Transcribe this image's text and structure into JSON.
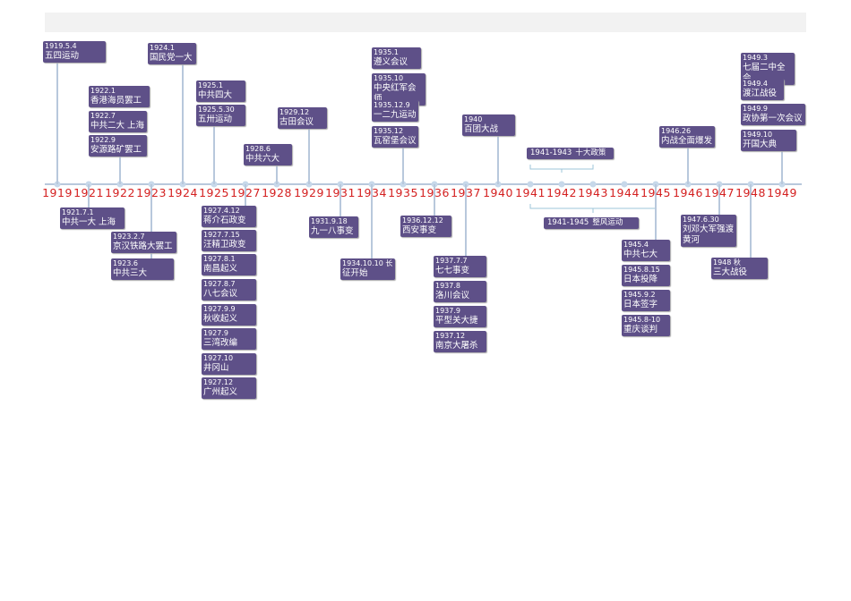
{
  "timeline": {
    "years": [
      "1919",
      "1921",
      "1922",
      "1923",
      "1924",
      "1925",
      "1927",
      "1928",
      "1929",
      "1931",
      "1934",
      "1935",
      "1936",
      "1937",
      "1940",
      "1941",
      "1942",
      "1943",
      "1944",
      "1945",
      "1946",
      "1947",
      "1948",
      "1949"
    ],
    "events": [
      {
        "date": "1919.5.4",
        "label": "五四运动"
      },
      {
        "date": "1922.1",
        "label": "香港海员罢工"
      },
      {
        "date": "1922.7",
        "label": "中共二大 上海"
      },
      {
        "date": "1922.9",
        "label": "安源路矿罢工"
      },
      {
        "date": "1924.1",
        "label": "国民党一大"
      },
      {
        "date": "1925.1",
        "label": "中共四大"
      },
      {
        "date": "1925.5.30",
        "label": "五卅运动"
      },
      {
        "date": "1928.6",
        "label": "中共六大"
      },
      {
        "date": "1929.12",
        "label": "古田会议"
      },
      {
        "date": "1935.1",
        "label": "遵义会议"
      },
      {
        "date": "1935.10",
        "label": "中央红军会师"
      },
      {
        "date": "1935.12.9",
        "label": "一二九运动"
      },
      {
        "date": "1935.12",
        "label": "瓦窑堡会议"
      },
      {
        "date": "1940",
        "label": "百团大战"
      },
      {
        "date": "1941-1943",
        "label": "十大政策"
      },
      {
        "date": "1946.26",
        "label": "内战全面爆发"
      },
      {
        "date": "1949.3",
        "label": "七届二中全会"
      },
      {
        "date": "1949.4",
        "label": "渡江战役"
      },
      {
        "date": "1949.9",
        "label": "政协第一次会议"
      },
      {
        "date": "1949.10",
        "label": "开国大典"
      },
      {
        "date": "1921.7.1",
        "label": "中共一大 上海"
      },
      {
        "date": "1923.2.7",
        "label": "京汉铁路大罢工"
      },
      {
        "date": "1923.6",
        "label": "中共三大"
      },
      {
        "date": "1927.4.12",
        "label": "蒋介石政变"
      },
      {
        "date": "1927.7.15",
        "label": "汪精卫政变"
      },
      {
        "date": "1927.8.1",
        "label": "南昌起义"
      },
      {
        "date": "1927.8.7",
        "label": "八七会议"
      },
      {
        "date": "1927.9.9",
        "label": "秋收起义"
      },
      {
        "date": "1927.9",
        "label": "三湾改编"
      },
      {
        "date": "1927.10",
        "label": "井冈山"
      },
      {
        "date": "1927.12",
        "label": "广州起义"
      },
      {
        "date": "1931.9.18",
        "label": "九一八事变"
      },
      {
        "date": "1934.10.10 长",
        "label": "征开始"
      },
      {
        "date": "1936.12.12",
        "label": "西安事变"
      },
      {
        "date": "1937.7.7",
        "label": "七七事变"
      },
      {
        "date": "1937.8",
        "label": "洛川会议"
      },
      {
        "date": "1937.9",
        "label": "平型关大捷"
      },
      {
        "date": "1937.12",
        "label": "南京大屠杀"
      },
      {
        "date": "1941-1945",
        "label": "整风运动"
      },
      {
        "date": "1945.4",
        "label": "中共七大"
      },
      {
        "date": "1945.8.15",
        "label": "日本投降"
      },
      {
        "date": "1945.9.2",
        "label": "日本签字"
      },
      {
        "date": "1945.8-10",
        "label": "重庆谈判"
      },
      {
        "date": "1947.6.30",
        "label": "刘邓大军强渡黄河"
      },
      {
        "date": "1948 秋",
        "label": "三大战役"
      }
    ]
  }
}
